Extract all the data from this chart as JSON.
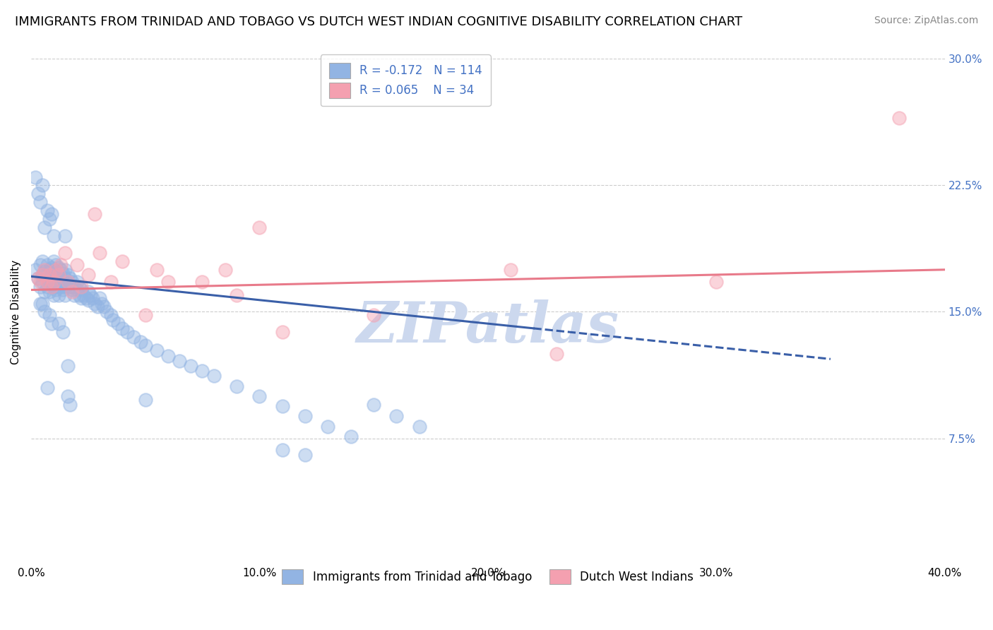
{
  "title": "IMMIGRANTS FROM TRINIDAD AND TOBAGO VS DUTCH WEST INDIAN COGNITIVE DISABILITY CORRELATION CHART",
  "source": "Source: ZipAtlas.com",
  "ylabel": "Cognitive Disability",
  "legend_label1": "Immigrants from Trinidad and Tobago",
  "legend_label2": "Dutch West Indians",
  "R1": -0.172,
  "N1": 114,
  "R2": 0.065,
  "N2": 34,
  "xlim": [
    0.0,
    0.4
  ],
  "ylim": [
    0.0,
    0.3
  ],
  "xticks": [
    0.0,
    0.1,
    0.2,
    0.3,
    0.4
  ],
  "yticks": [
    0.075,
    0.15,
    0.225,
    0.3
  ],
  "xtick_labels": [
    "0.0%",
    "10.0%",
    "20.0%",
    "30.0%",
    "40.0%"
  ],
  "ytick_labels": [
    "7.5%",
    "15.0%",
    "22.5%",
    "30.0%"
  ],
  "color_blue": "#92b4e3",
  "color_pink": "#f4a0b0",
  "line_color_blue": "#3a5fa8",
  "line_color_pink": "#e87a8a",
  "grid_color": "#cccccc",
  "background_color": "#ffffff",
  "title_fontsize": 13,
  "source_fontsize": 10,
  "axis_label_fontsize": 11,
  "tick_fontsize": 11,
  "legend_fontsize": 12,
  "scatter_alpha": 0.45,
  "scatter_size": 180,
  "blue_trend_x": [
    0.0,
    0.35
  ],
  "blue_trend_y": [
    0.171,
    0.122
  ],
  "blue_trend_solid_end": 0.22,
  "pink_trend_x": [
    0.0,
    0.4
  ],
  "pink_trend_y": [
    0.163,
    0.175
  ],
  "watermark": "ZIPatlas",
  "watermark_color": "#ccd8ee",
  "right_ytick_color": "#4472c4",
  "legend_R_color": "#4472c4",
  "legend_text_color": "#333333",
  "blue_x": [
    0.002,
    0.003,
    0.004,
    0.004,
    0.005,
    0.005,
    0.005,
    0.006,
    0.006,
    0.007,
    0.007,
    0.007,
    0.008,
    0.008,
    0.008,
    0.009,
    0.009,
    0.009,
    0.01,
    0.01,
    0.01,
    0.01,
    0.01,
    0.011,
    0.011,
    0.011,
    0.011,
    0.012,
    0.012,
    0.012,
    0.012,
    0.013,
    0.013,
    0.013,
    0.014,
    0.014,
    0.014,
    0.015,
    0.015,
    0.015,
    0.015,
    0.016,
    0.016,
    0.017,
    0.017,
    0.018,
    0.018,
    0.019,
    0.019,
    0.02,
    0.02,
    0.021,
    0.021,
    0.022,
    0.022,
    0.023,
    0.024,
    0.025,
    0.025,
    0.026,
    0.027,
    0.028,
    0.029,
    0.03,
    0.031,
    0.032,
    0.033,
    0.035,
    0.036,
    0.038,
    0.04,
    0.042,
    0.045,
    0.048,
    0.05,
    0.055,
    0.06,
    0.065,
    0.07,
    0.075,
    0.08,
    0.09,
    0.1,
    0.11,
    0.12,
    0.13,
    0.14,
    0.15,
    0.16,
    0.17,
    0.002,
    0.003,
    0.004,
    0.005,
    0.006,
    0.007,
    0.008,
    0.009,
    0.01,
    0.015,
    0.007,
    0.004,
    0.005,
    0.006,
    0.008,
    0.009,
    0.012,
    0.014,
    0.016,
    0.016,
    0.017,
    0.05,
    0.11,
    0.12
  ],
  "blue_y": [
    0.175,
    0.17,
    0.178,
    0.165,
    0.172,
    0.168,
    0.18,
    0.174,
    0.162,
    0.178,
    0.17,
    0.165,
    0.175,
    0.168,
    0.162,
    0.176,
    0.172,
    0.168,
    0.18,
    0.175,
    0.17,
    0.165,
    0.16,
    0.178,
    0.173,
    0.168,
    0.163,
    0.176,
    0.17,
    0.165,
    0.16,
    0.175,
    0.17,
    0.165,
    0.173,
    0.168,
    0.163,
    0.175,
    0.17,
    0.165,
    0.16,
    0.172,
    0.167,
    0.17,
    0.165,
    0.168,
    0.163,
    0.165,
    0.16,
    0.168,
    0.163,
    0.165,
    0.16,
    0.163,
    0.158,
    0.16,
    0.158,
    0.162,
    0.157,
    0.16,
    0.158,
    0.155,
    0.153,
    0.158,
    0.155,
    0.153,
    0.15,
    0.148,
    0.145,
    0.143,
    0.14,
    0.138,
    0.135,
    0.132,
    0.13,
    0.127,
    0.124,
    0.121,
    0.118,
    0.115,
    0.112,
    0.106,
    0.1,
    0.094,
    0.088,
    0.082,
    0.076,
    0.095,
    0.088,
    0.082,
    0.23,
    0.22,
    0.215,
    0.225,
    0.2,
    0.21,
    0.205,
    0.208,
    0.195,
    0.195,
    0.105,
    0.155,
    0.155,
    0.15,
    0.148,
    0.143,
    0.143,
    0.138,
    0.118,
    0.1,
    0.095,
    0.098,
    0.068,
    0.065
  ],
  "pink_x": [
    0.003,
    0.004,
    0.005,
    0.006,
    0.007,
    0.008,
    0.009,
    0.01,
    0.011,
    0.012,
    0.013,
    0.015,
    0.016,
    0.018,
    0.02,
    0.022,
    0.025,
    0.028,
    0.03,
    0.035,
    0.04,
    0.05,
    0.055,
    0.06,
    0.075,
    0.085,
    0.09,
    0.1,
    0.11,
    0.15,
    0.21,
    0.23,
    0.3,
    0.38
  ],
  "pink_y": [
    0.17,
    0.168,
    0.172,
    0.175,
    0.168,
    0.172,
    0.165,
    0.168,
    0.175,
    0.172,
    0.178,
    0.185,
    0.168,
    0.162,
    0.178,
    0.165,
    0.172,
    0.208,
    0.185,
    0.168,
    0.18,
    0.148,
    0.175,
    0.168,
    0.168,
    0.175,
    0.16,
    0.2,
    0.138,
    0.148,
    0.175,
    0.125,
    0.168,
    0.265
  ]
}
